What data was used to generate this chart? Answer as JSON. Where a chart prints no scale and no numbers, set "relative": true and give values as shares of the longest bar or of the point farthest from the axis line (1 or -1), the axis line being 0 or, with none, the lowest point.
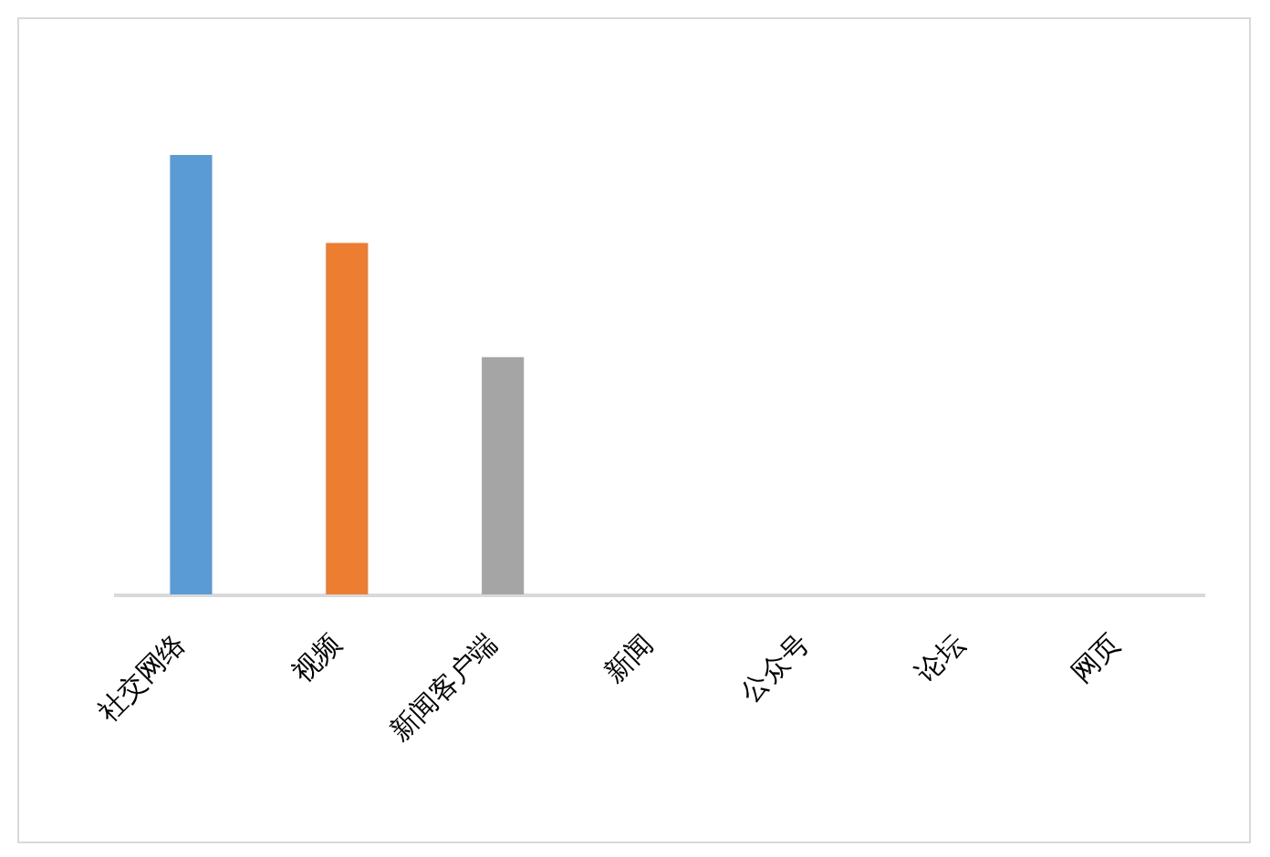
{
  "chart_data": {
    "type": "bar",
    "relative": true,
    "categories": [
      "社交网络",
      "视频",
      "新闻客户端",
      "新闻",
      "公众号",
      "论坛",
      "网页"
    ],
    "values": [
      1,
      0.8,
      0.54,
      0,
      0,
      0,
      0
    ],
    "colors": [
      "#5b9bd5",
      "#ed7d31",
      "#a5a5a5",
      "#5b9bd5",
      "#ed7d31",
      "#a5a5a5",
      "#5b9bd5"
    ]
  }
}
